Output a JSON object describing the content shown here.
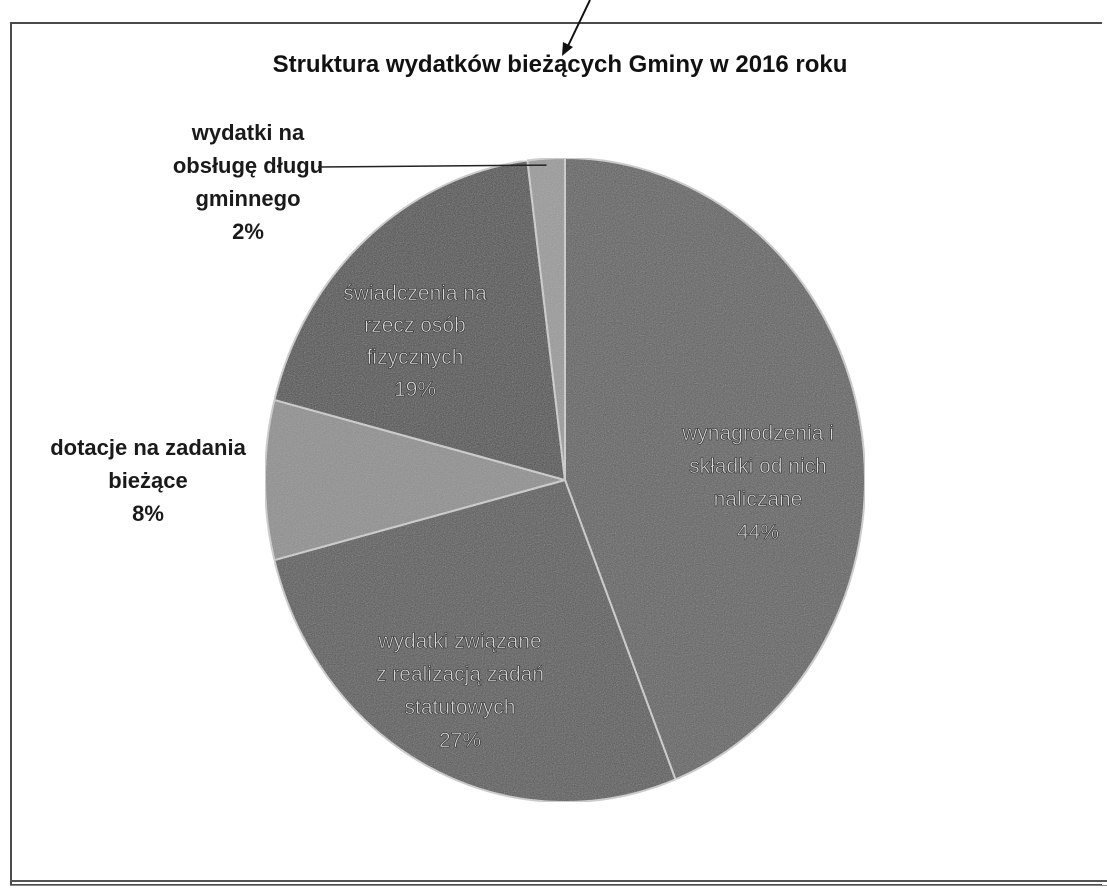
{
  "chart_data": {
    "type": "pie",
    "title": "Struktura wydatków bieżących Gminy w 2016 roku",
    "slices": [
      {
        "lines": [
          "wynagrodzenia i",
          "składki od nich",
          "naliczane"
        ],
        "percent_label": "44%",
        "value": 44,
        "color": "#5e5e5e",
        "label_pos": "inside"
      },
      {
        "lines": [
          "wydatki związane",
          "z realizacją zadań",
          "statutowych"
        ],
        "percent_label": "27%",
        "value": 27,
        "color": "#565656",
        "label_pos": "inside"
      },
      {
        "lines": [
          "dotacje na zadania",
          "bieżące"
        ],
        "percent_label": "8%",
        "value": 8,
        "color": "#8e8e8e",
        "label_pos": "outside"
      },
      {
        "lines": [
          "świadczenia na",
          "rzecz osób",
          "fizycznych"
        ],
        "percent_label": "19%",
        "value": 19,
        "color": "#4e4e4e",
        "label_pos": "inside"
      },
      {
        "lines": [
          "wydatki na",
          "obsługę długu",
          "gminnego"
        ],
        "percent_label": "2%",
        "value": 2,
        "color": "#9a9a9a",
        "label_pos": "outside"
      }
    ]
  }
}
